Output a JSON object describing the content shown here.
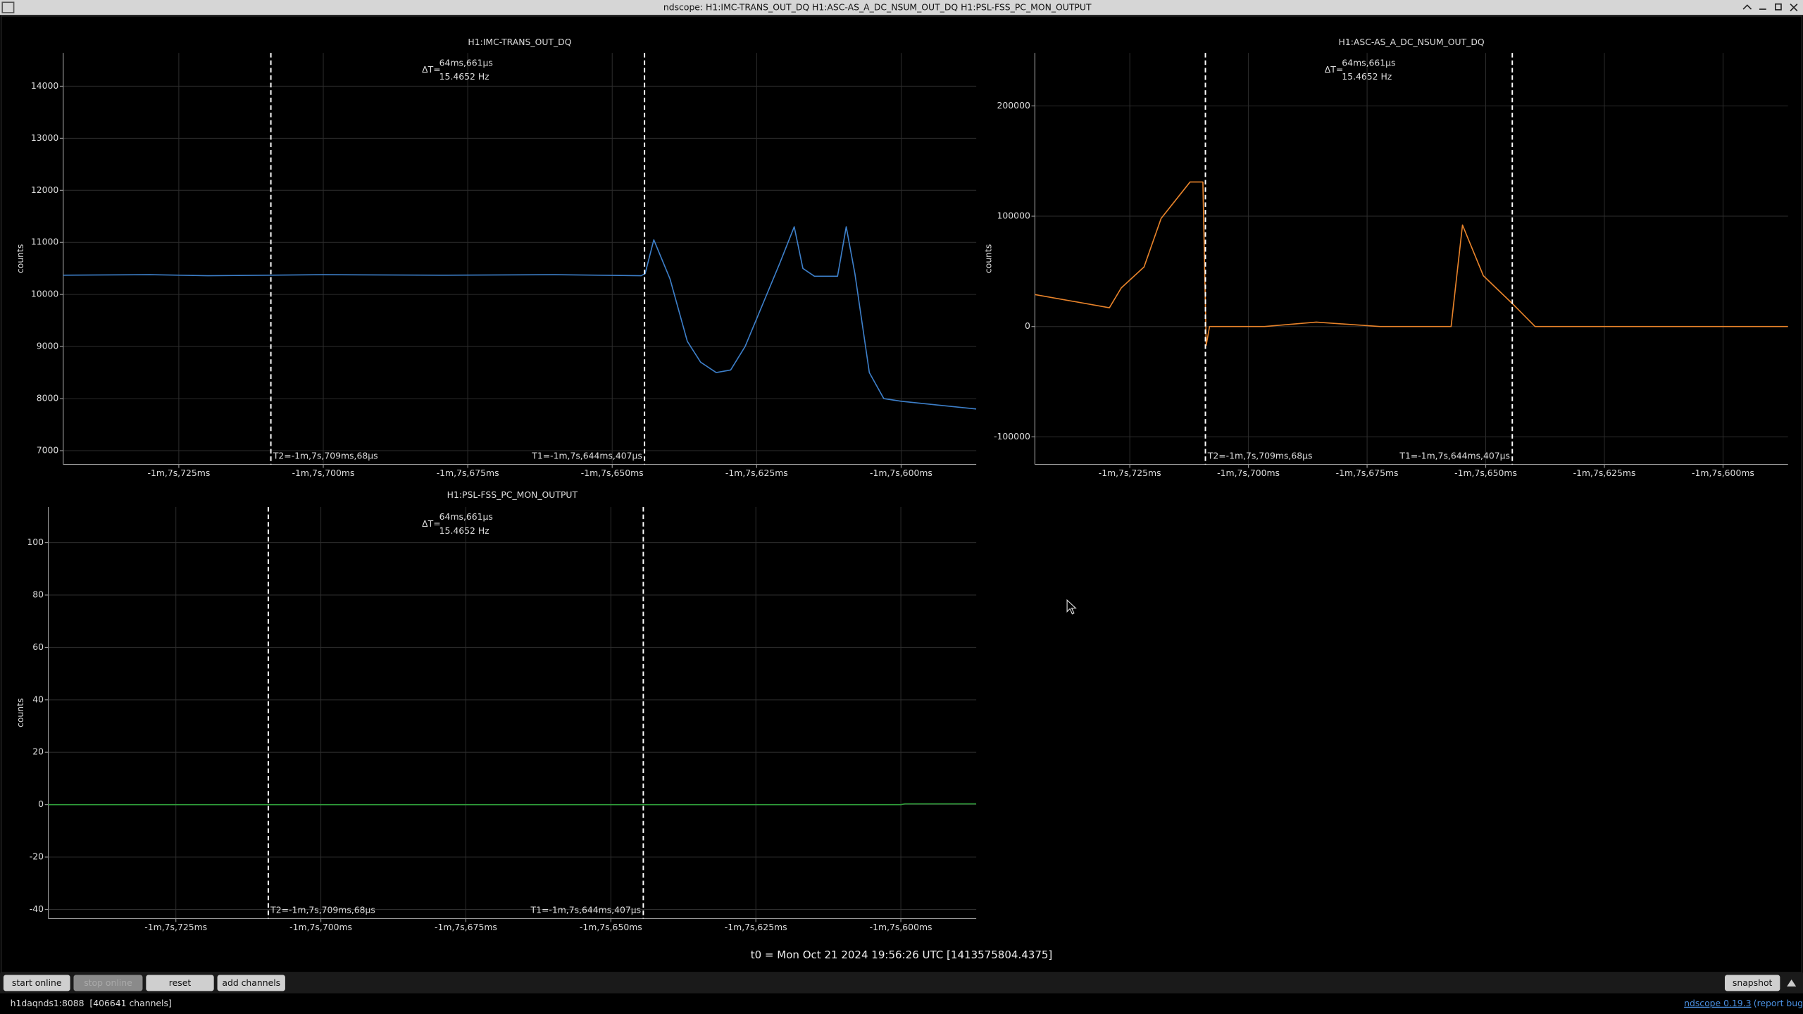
{
  "window": {
    "title": "ndscope: H1:IMC-TRANS_OUT_DQ H1:ASC-AS_A_DC_NSUM_OUT_DQ H1:PSL-FSS_PC_MON_OUTPUT"
  },
  "chart_data": [
    {
      "type": "line",
      "title": "H1:IMC-TRANS_OUT_DQ",
      "y_label": "counts",
      "x": [
        -67.745,
        -67.73,
        -67.72,
        -67.7,
        -67.68,
        -67.66,
        -67.645,
        -67.6443,
        -67.6428,
        -67.64,
        -67.637,
        -67.6347,
        -67.632,
        -67.6295,
        -67.627,
        -67.624,
        -67.621,
        -67.6185,
        -67.617,
        -67.615,
        -67.611,
        -67.6095,
        -67.608,
        -67.6055,
        -67.603,
        -67.6,
        -67.594,
        -67.587
      ],
      "series": [
        {
          "color": "#3d7fc9",
          "values": [
            10370,
            10380,
            10360,
            10380,
            10370,
            10380,
            10360,
            10400,
            11050,
            10300,
            9100,
            8700,
            8500,
            8550,
            9000,
            9800,
            10600,
            11300,
            10500,
            10350,
            10350,
            11300,
            10400,
            8500,
            8000,
            7950,
            7880,
            7800
          ]
        }
      ],
      "xlim": [
        -67.745,
        -67.587
      ],
      "xticks": [
        {
          "value": -67.725,
          "label": "-1m,7s,725ms"
        },
        {
          "value": -67.7,
          "label": "-1m,7s,700ms"
        },
        {
          "value": -67.675,
          "label": "-1m,7s,675ms"
        },
        {
          "value": -67.65,
          "label": "-1m,7s,650ms"
        },
        {
          "value": -67.625,
          "label": "-1m,7s,625ms"
        },
        {
          "value": -67.6,
          "label": "-1m,7s,600ms"
        }
      ],
      "ylim": [
        6735,
        14640
      ],
      "yticks": [
        7000,
        8000,
        9000,
        10000,
        11000,
        12000,
        13000,
        14000
      ],
      "grid": true,
      "cursors": [
        {
          "value": -67.709068,
          "label": "T2=-1m,7s,709ms,68µs"
        },
        {
          "value": -67.644407,
          "label": "T1=-1m,7s,644ms,407µs"
        }
      ],
      "delta": {
        "label": "ΔT=",
        "time": "64ms,661µs",
        "freq": "15.4652 Hz"
      }
    },
    {
      "type": "line",
      "title": "H1:ASC-AS_A_DC_NSUM_OUT_DQ",
      "y_label": "counts",
      "x": [
        -67.745,
        -67.7293,
        -67.7268,
        -67.722,
        -67.7184,
        -67.7123,
        -67.7096,
        -67.7089,
        -67.7082,
        -67.6966,
        -67.6857,
        -67.6723,
        -67.6573,
        -67.6549,
        -67.6505,
        -67.6442,
        -67.6396,
        -67.5863
      ],
      "series": [
        {
          "color": "#e8832a",
          "values": [
            29000,
            17000,
            35000,
            54000,
            98000,
            131000,
            131000,
            -17000,
            0,
            0,
            4000,
            0,
            0,
            92000,
            46000,
            20000,
            0,
            0
          ]
        }
      ],
      "xlim": [
        -67.745,
        -67.5863
      ],
      "xticks": [
        {
          "value": -67.725,
          "label": "-1m,7s,725ms"
        },
        {
          "value": -67.7,
          "label": "-1m,7s,700ms"
        },
        {
          "value": -67.675,
          "label": "-1m,7s,675ms"
        },
        {
          "value": -67.65,
          "label": "-1m,7s,650ms"
        },
        {
          "value": -67.625,
          "label": "-1m,7s,625ms"
        },
        {
          "value": -67.6,
          "label": "-1m,7s,600ms"
        }
      ],
      "ylim": [
        -125000,
        248000
      ],
      "yticks": [
        -100000,
        0,
        100000,
        200000
      ],
      "grid": true,
      "cursors": [
        {
          "value": -67.709068,
          "label": "T2=-1m,7s,709ms,68µs"
        },
        {
          "value": -67.644407,
          "label": "T1=-1m,7s,644ms,407µs"
        }
      ],
      "delta": {
        "label": "ΔT=",
        "time": "64ms,661µs",
        "freq": "15.4652 Hz"
      }
    },
    {
      "type": "line",
      "title": "H1:PSL-FSS_PC_MON_OUTPUT",
      "y_label": "counts",
      "x": [
        -67.747,
        -67.6,
        -67.5993,
        -67.587
      ],
      "series": [
        {
          "color": "#2f9e3a",
          "values": [
            0,
            0,
            0.3,
            0.3
          ]
        }
      ],
      "xlim": [
        -67.747,
        -67.587
      ],
      "xticks": [
        {
          "value": -67.725,
          "label": "-1m,7s,725ms"
        },
        {
          "value": -67.7,
          "label": "-1m,7s,700ms"
        },
        {
          "value": -67.675,
          "label": "-1m,7s,675ms"
        },
        {
          "value": -67.65,
          "label": "-1m,7s,650ms"
        },
        {
          "value": -67.625,
          "label": "-1m,7s,625ms"
        },
        {
          "value": -67.6,
          "label": "-1m,7s,600ms"
        }
      ],
      "ylim": [
        -43.5,
        113.6
      ],
      "yticks": [
        -40,
        -20,
        0,
        20,
        40,
        60,
        80,
        100
      ],
      "grid": true,
      "cursors": [
        {
          "value": -67.709068,
          "label": "T2=-1m,7s,709ms,68µs"
        },
        {
          "value": -67.644407,
          "label": "T1=-1m,7s,644ms,407µs"
        }
      ],
      "delta": {
        "label": "ΔT=",
        "time": "64ms,661µs",
        "freq": "15.4652 Hz"
      }
    }
  ],
  "footer": {
    "t0": "t0 = Mon Oct 21 2024 19:56:26 UTC [1413575804.4375]"
  },
  "toolbar": {
    "buttons": [
      "start online",
      "stop online",
      "reset",
      "add channels"
    ],
    "snapshot": "snapshot"
  },
  "status": {
    "server": "h1daqnds1:8088  [406641 channels]",
    "version": "ndscope 0.19.3",
    "report": "(report bug)"
  }
}
